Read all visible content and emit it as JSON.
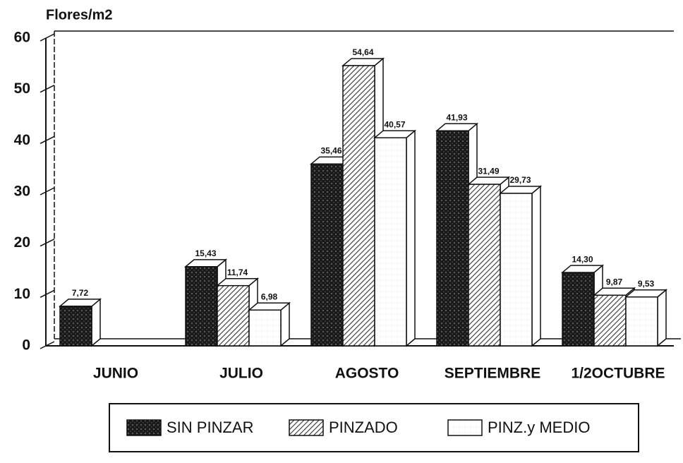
{
  "chart_data": {
    "type": "bar3d",
    "y_label": "Flores/m2",
    "categories": [
      "JUNIO",
      "JULIO",
      "AGOSTO",
      "SEPTIEMBRE",
      "1/2OCTUBRE"
    ],
    "series": [
      {
        "name": "SIN PINZAR",
        "color": "#1a1a1a",
        "values": [
          7.72,
          15.43,
          35.46,
          41.93,
          14.3
        ],
        "value_labels": [
          "7,72",
          "15,43",
          "35,46",
          "41,93",
          "14,30"
        ]
      },
      {
        "name": "PINZADO",
        "color": "#555555",
        "values": [
          null,
          11.74,
          54.64,
          31.49,
          9.87
        ],
        "value_labels": [
          null,
          "11,74",
          "54,64",
          "31,49",
          "9,87"
        ]
      },
      {
        "name": "PINZ.y MEDIO",
        "color": "#ffffff",
        "values": [
          null,
          6.98,
          40.57,
          29.73,
          9.53
        ],
        "value_labels": [
          null,
          "6,98",
          "40,57",
          "29,73",
          "9,53"
        ]
      }
    ],
    "ylim": [
      0,
      60
    ],
    "yticks": [
      0,
      10,
      20,
      30,
      40,
      50,
      60
    ]
  }
}
